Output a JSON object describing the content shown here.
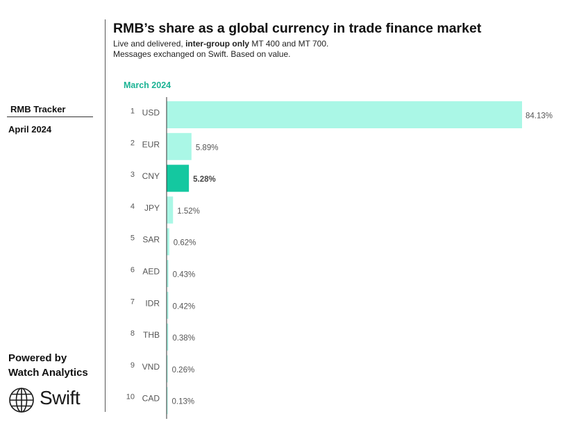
{
  "sidebar": {
    "tracker_label": "RMB Tracker",
    "tracker_date": "April 2024",
    "powered_line1": "Powered by",
    "powered_line2": "Watch Analytics",
    "brand_name": "Swift",
    "brand_icon": "globe-icon"
  },
  "header": {
    "title": "RMB’s share as a global currency in trade finance market",
    "subtitle_pre": "Live and delivered, ",
    "subtitle_bold": "inter-group only",
    "subtitle_post": " MT 400 and MT 700.",
    "subtitle_line2": "Messages exchanged on Swift. Based on value.",
    "period": "March 2024"
  },
  "colors": {
    "bar_default": "#aaf7e6",
    "bar_highlight": "#14c8a0",
    "period_text": "#1bb394",
    "axis": "#333333",
    "label_text": "#555555",
    "value_text": "#555555"
  },
  "chart_data": {
    "type": "bar",
    "orientation": "horizontal",
    "title": "RMB’s share as a global currency in trade finance market",
    "ranks": [
      "1",
      "2",
      "3",
      "4",
      "5",
      "6",
      "7",
      "8",
      "9",
      "10"
    ],
    "categories": [
      "USD",
      "EUR",
      "CNY",
      "JPY",
      "SAR",
      "AED",
      "IDR",
      "THB",
      "VND",
      "CAD"
    ],
    "values": [
      84.13,
      5.89,
      5.28,
      1.52,
      0.62,
      0.43,
      0.42,
      0.38,
      0.26,
      0.13
    ],
    "value_labels": [
      "84.13%",
      "5.89%",
      "5.28%",
      "1.52%",
      "0.62%",
      "0.43%",
      "0.42%",
      "0.38%",
      "0.26%",
      "0.13%"
    ],
    "highlight": "CNY",
    "xlim": [
      0,
      84.13
    ],
    "grid": false,
    "legend": "none"
  }
}
